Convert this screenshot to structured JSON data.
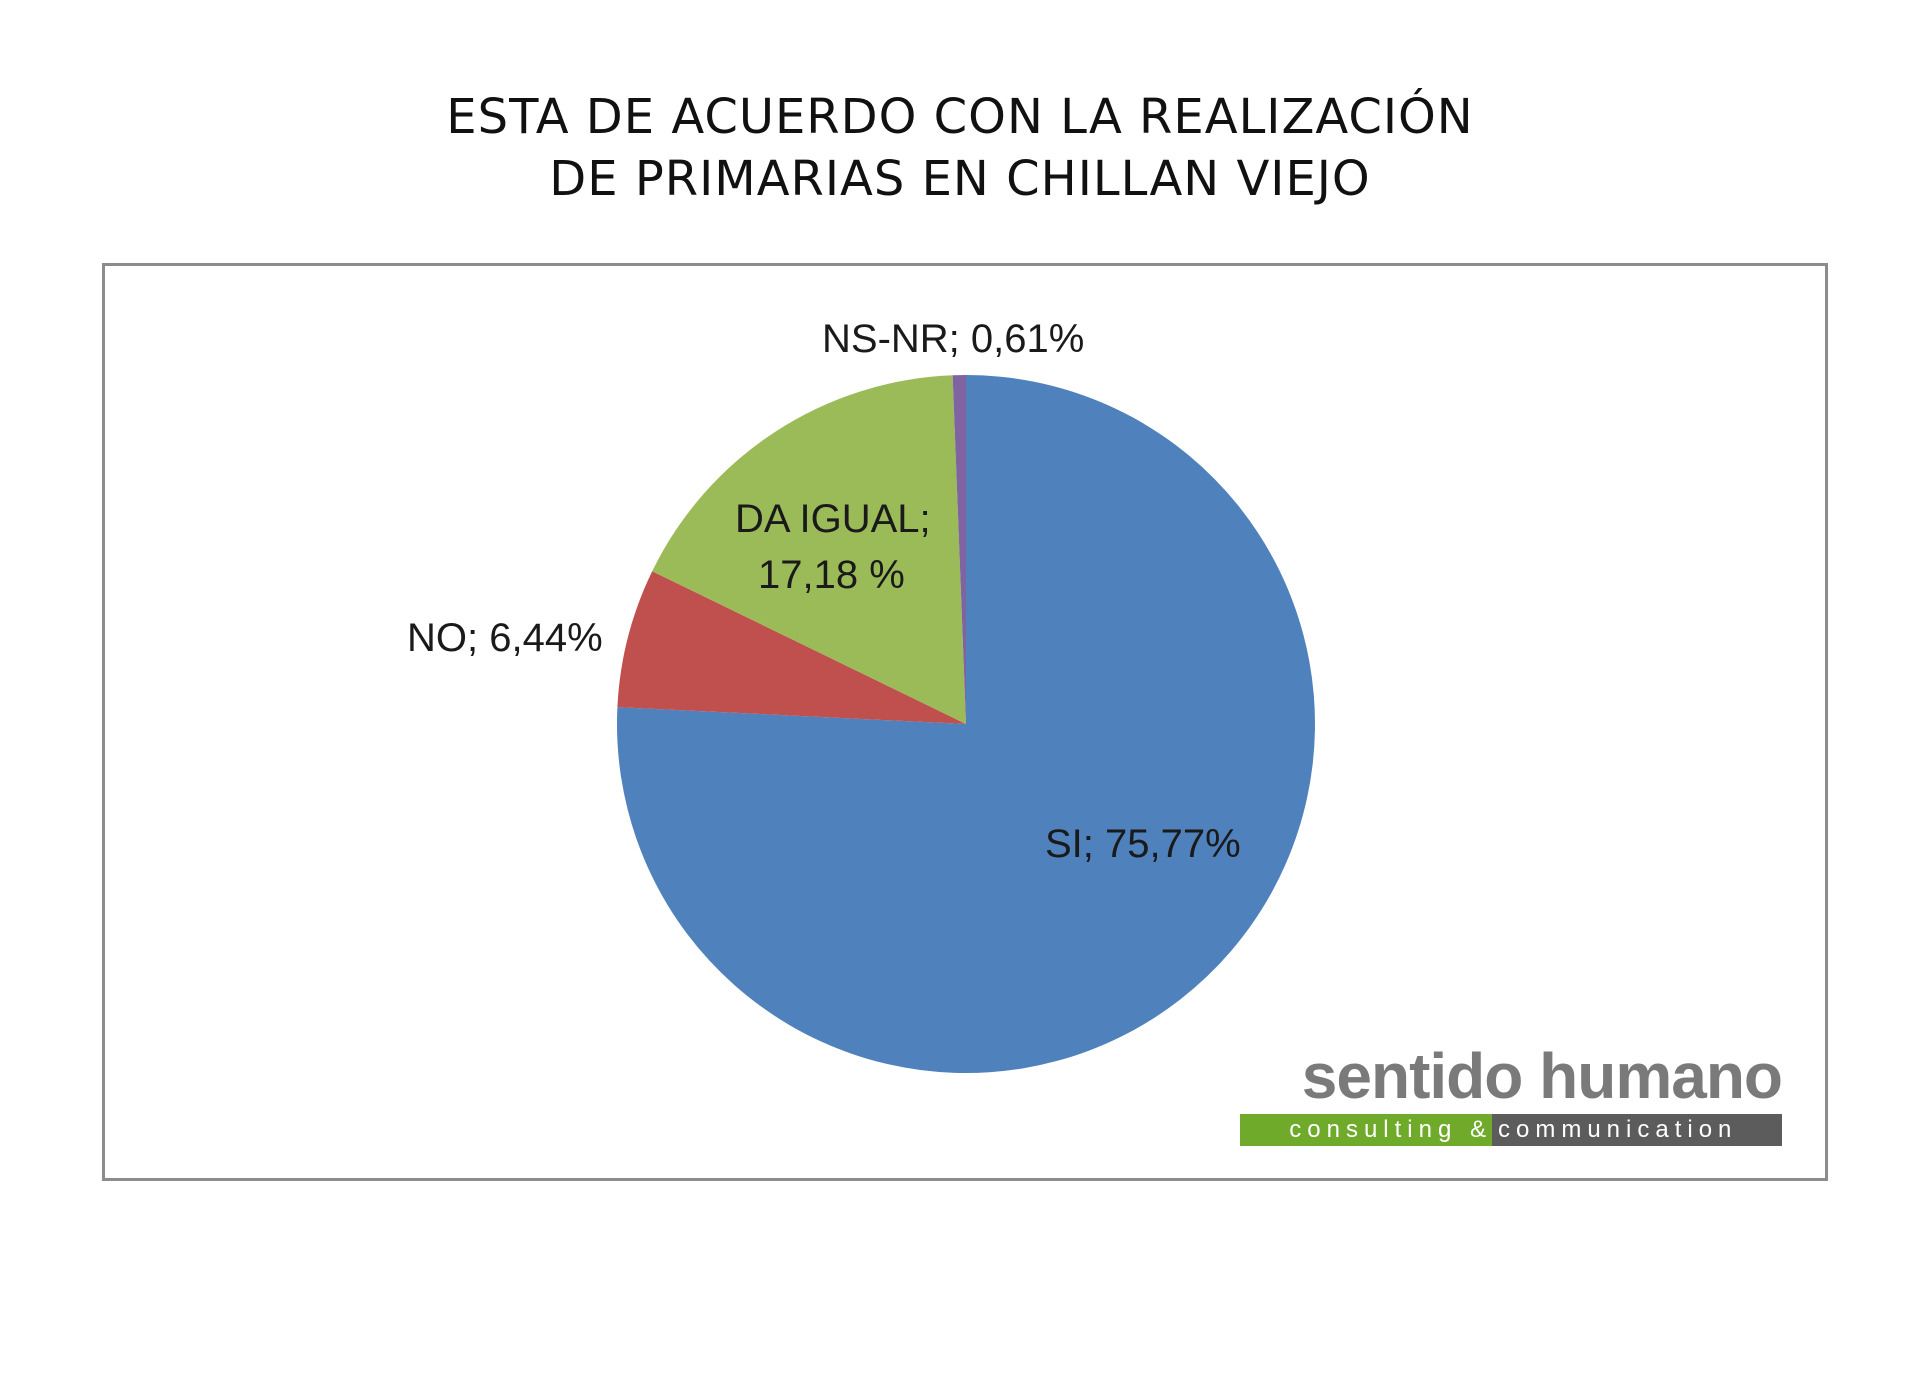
{
  "title_lines": [
    "ESTA DE ACUERDO CON LA REALIZACIÓN",
    "DE PRIMARIAS EN CHILLAN VIEJO"
  ],
  "chart_data": {
    "type": "pie",
    "title": "ESTA DE ACUERDO CON LA REALIZACIÓN DE PRIMARIAS EN CHILLAN VIEJO",
    "slices": [
      {
        "label": "SI",
        "value": 75.77,
        "text": "SI; 75,77%",
        "color": "#4f81bd"
      },
      {
        "label": "NO",
        "value": 6.44,
        "text": "NO; 6,44%",
        "color": "#c0504d"
      },
      {
        "label": "DA IGUAL",
        "value": 17.18,
        "text_lines": [
          "DA IGUAL;",
          "17,18 %"
        ],
        "color": "#9bbb59"
      },
      {
        "label": "NS-NR",
        "value": 0.61,
        "text": "NS-NR; 0,61%",
        "color": "#8064a2"
      }
    ]
  },
  "logo": {
    "name": "sentido humano",
    "tagline_left": "consulting  &",
    "tagline_right": "communication"
  }
}
